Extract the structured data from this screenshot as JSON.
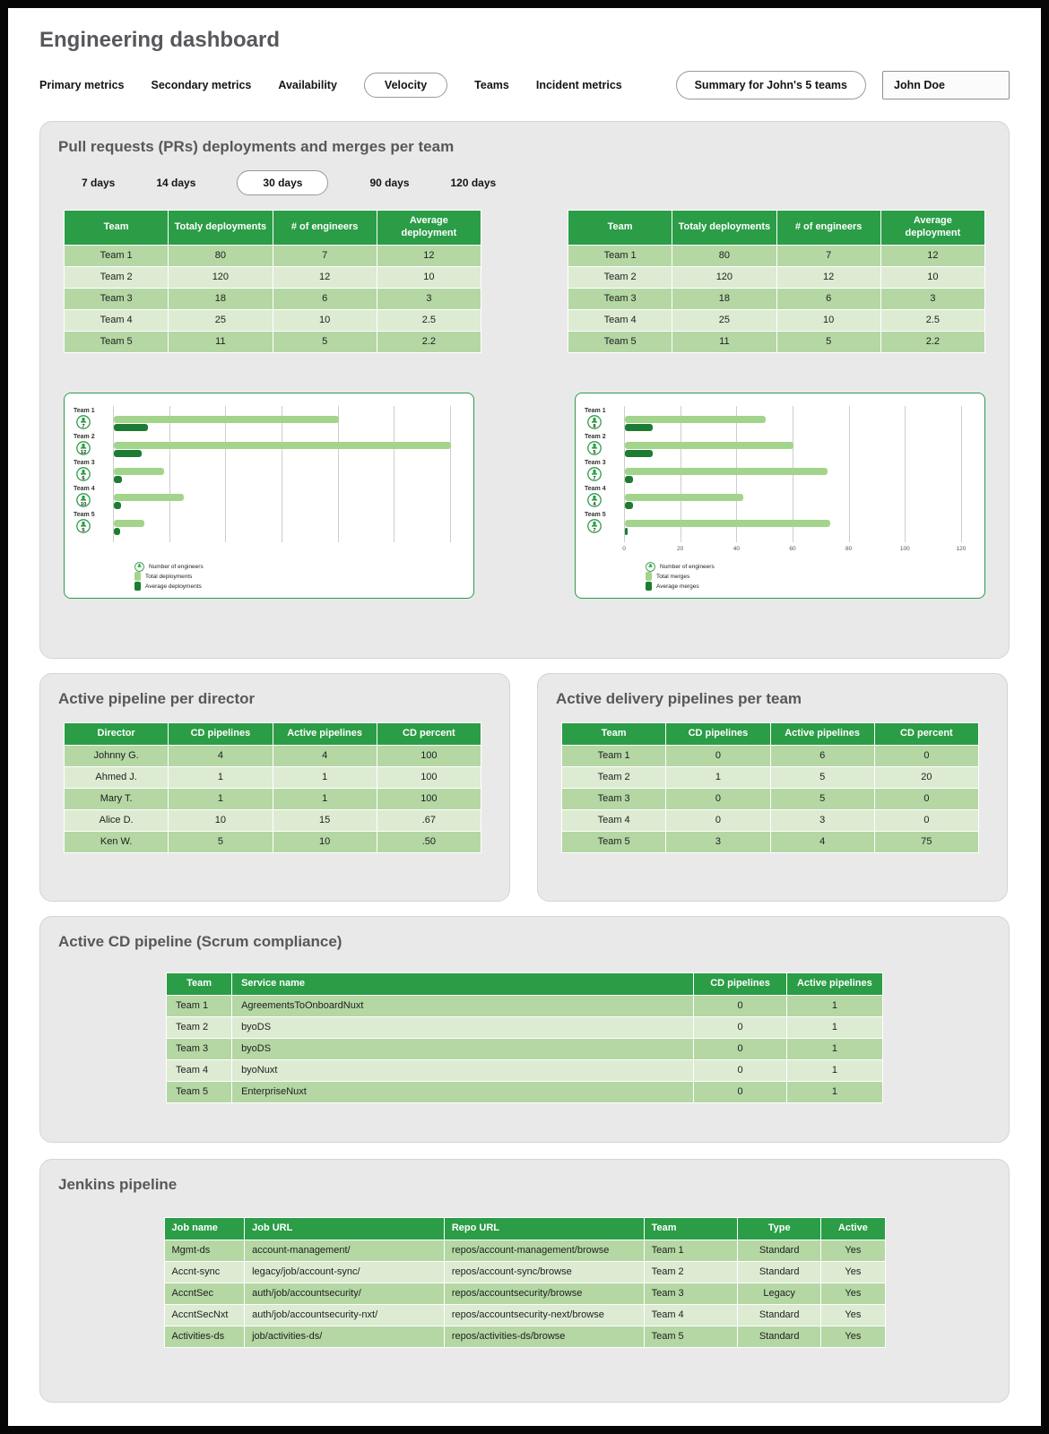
{
  "page_title": "Engineering dashboard",
  "nav": {
    "items": [
      {
        "label": "Primary metrics",
        "selected": false
      },
      {
        "label": "Secondary metrics",
        "selected": false
      },
      {
        "label": "Availability",
        "selected": false
      },
      {
        "label": "Velocity",
        "selected": true
      },
      {
        "label": "Teams",
        "selected": false
      },
      {
        "label": "Incident metrics",
        "selected": false
      }
    ],
    "summary_button_label": "Summary for John's 5 teams",
    "user_name": "John Doe"
  },
  "pr_panel": {
    "title": "Pull requests (PRs) deployments and merges per team",
    "time_filters": [
      {
        "label": "7 days",
        "selected": false
      },
      {
        "label": "14 days",
        "selected": false
      },
      {
        "label": "30 days",
        "selected": true
      },
      {
        "label": "90 days",
        "selected": false
      },
      {
        "label": "120 days",
        "selected": false
      }
    ],
    "deployments_table": {
      "headers": [
        "Team",
        "Totaly deployments",
        "# of engineers",
        "Average deployment"
      ],
      "rows": [
        [
          "Team 1",
          "80",
          "7",
          "12"
        ],
        [
          "Team 2",
          "120",
          "12",
          "10"
        ],
        [
          "Team 3",
          "18",
          "6",
          "3"
        ],
        [
          "Team 4",
          "25",
          "10",
          "2.5"
        ],
        [
          "Team 5",
          "11",
          "5",
          "2.2"
        ]
      ]
    },
    "merges_table": {
      "headers": [
        "Team",
        "Totaly deployments",
        "# of engineers",
        "Average deployment"
      ],
      "rows": [
        [
          "Team 1",
          "80",
          "7",
          "12"
        ],
        [
          "Team 2",
          "120",
          "12",
          "10"
        ],
        [
          "Team 3",
          "18",
          "6",
          "3"
        ],
        [
          "Team 4",
          "25",
          "10",
          "2.5"
        ],
        [
          "Team 5",
          "11",
          "5",
          "2.2"
        ]
      ]
    }
  },
  "chart_data": [
    {
      "type": "bar",
      "orientation": "horizontal",
      "categories": [
        "Team 1",
        "Team 2",
        "Team 3",
        "Team 4",
        "Team 5"
      ],
      "engineer_badges": [
        7,
        12,
        6,
        10,
        5
      ],
      "series": [
        {
          "name": "Total deployments",
          "style": "light",
          "values": [
            80,
            120,
            18,
            25,
            11
          ]
        },
        {
          "name": "Average deployments",
          "style": "dark",
          "values": [
            12,
            10,
            3,
            2.5,
            2.2
          ]
        }
      ],
      "legend": [
        "Number of engineers",
        "Total deployments",
        "Average deployments"
      ],
      "xlim": [
        0,
        120
      ],
      "xticks": [],
      "grid": true
    },
    {
      "type": "bar",
      "orientation": "horizontal",
      "categories": [
        "Team 1",
        "Team 2",
        "Team 3",
        "Team 4",
        "Team 5"
      ],
      "engineer_badges": [
        8,
        5,
        7,
        4,
        7
      ],
      "series": [
        {
          "name": "Total merges",
          "style": "light",
          "values": [
            50,
            60,
            72,
            42,
            73
          ]
        },
        {
          "name": "Average merges",
          "style": "dark",
          "values": [
            10,
            10,
            3,
            3,
            1
          ]
        }
      ],
      "legend": [
        "Number of engineers",
        "Total merges",
        "Average merges"
      ],
      "xlim": [
        0,
        120
      ],
      "xticks": [
        0,
        20,
        40,
        60,
        80,
        100,
        120
      ],
      "grid": true
    }
  ],
  "director_panel": {
    "title": "Active pipeline per director",
    "table": {
      "headers": [
        "Director",
        "CD pipelines",
        "Active pipelines",
        "CD percent"
      ],
      "rows": [
        [
          "Johnny G.",
          "4",
          "4",
          "100"
        ],
        [
          "Ahmed J.",
          "1",
          "1",
          "100"
        ],
        [
          "Mary T.",
          "1",
          "1",
          "100"
        ],
        [
          "Alice D.",
          "10",
          "15",
          ".67"
        ],
        [
          "Ken W.",
          "5",
          "10",
          ".50"
        ]
      ]
    }
  },
  "team_pipelines_panel": {
    "title": "Active delivery pipelines per team",
    "table": {
      "headers": [
        "Team",
        "CD pipelines",
        "Active pipelines",
        "CD percent"
      ],
      "rows": [
        [
          "Team 1",
          "0",
          "6",
          "0"
        ],
        [
          "Team 2",
          "1",
          "5",
          "20"
        ],
        [
          "Team 3",
          "0",
          "5",
          "0"
        ],
        [
          "Team 4",
          "0",
          "3",
          "0"
        ],
        [
          "Team 5",
          "3",
          "4",
          "75"
        ]
      ]
    }
  },
  "scrum_panel": {
    "title": "Active CD pipeline (Scrum compliance)",
    "table": {
      "headers": [
        "Team",
        "Service name",
        "CD pipelines",
        "Active pipelines"
      ],
      "rows": [
        [
          "Team 1",
          "AgreementsToOnboardNuxt",
          "0",
          "1"
        ],
        [
          "Team 2",
          "byoDS",
          "0",
          "1"
        ],
        [
          "Team 3",
          "byoDS",
          "0",
          "1"
        ],
        [
          "Team 4",
          "byoNuxt",
          "0",
          "1"
        ],
        [
          "Team 5",
          "EnterpriseNuxt",
          "0",
          "1"
        ]
      ]
    }
  },
  "jenkins_panel": {
    "title": "Jenkins pipeline",
    "table": {
      "headers": [
        "Job name",
        "Job URL",
        "Repo URL",
        "Team",
        "Type",
        "Active"
      ],
      "rows": [
        [
          "Mgmt-ds",
          "account-management/",
          "repos/account-management/browse",
          "Team 1",
          "Standard",
          "Yes"
        ],
        [
          "Accnt-sync",
          "legacy/job/account-sync/",
          "repos/account-sync/browse",
          "Team 2",
          "Standard",
          "Yes"
        ],
        [
          "AccntSec",
          "auth/job/accountsecurity/",
          "repos/accountsecurity/browse",
          "Team 3",
          "Legacy",
          "Yes"
        ],
        [
          "AccntSecNxt",
          "auth/job/accountsecurity-nxt/",
          "repos/accountsecurity-next/browse",
          "Team 4",
          "Standard",
          "Yes"
        ],
        [
          "Activities-ds",
          "job/activities-ds/",
          "repos/activities-ds/browse",
          "Team 5",
          "Standard",
          "Yes"
        ]
      ]
    }
  },
  "colors": {
    "header_green": "#2a9d46",
    "row_dark": "#b4d7a4",
    "row_light": "#dcebd2",
    "bar_light": "#a3d48c",
    "bar_dark": "#1e7b33"
  }
}
